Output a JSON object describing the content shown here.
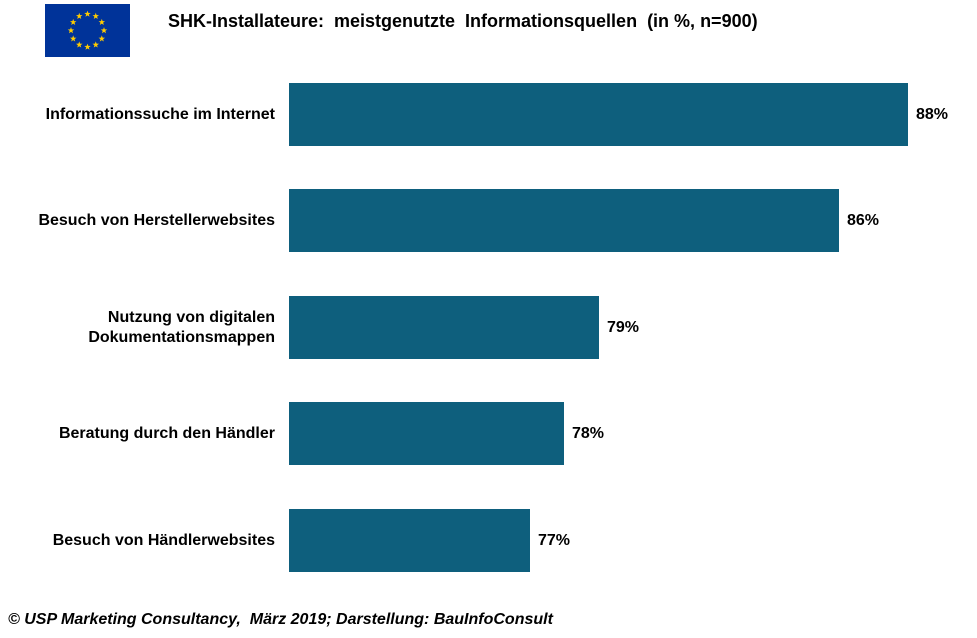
{
  "header": {
    "title": "SHK-Installateure:  meistgenutzte  Informationsquellen  (in %, n=900)",
    "logo": "eu-flag"
  },
  "chart_data": {
    "type": "bar",
    "orientation": "horizontal",
    "title": "SHK-Installateure:  meistgenutzte  Informationsquellen  (in %, n=900)",
    "categories": [
      "Informationssuche im Internet",
      "Besuch von Herstellerwebsites",
      "Nutzung von digitalen\nDokumentationsmappen",
      "Beratung durch den Händler",
      "Besuch von Händlerwebsites"
    ],
    "values": [
      88,
      86,
      79,
      78,
      77
    ],
    "value_labels": [
      "88%",
      "86%",
      "79%",
      "78%",
      "77%"
    ],
    "xlabel": "",
    "ylabel": "",
    "xlim": [
      70,
      90
    ],
    "grid": false,
    "legend": false,
    "unit": "%",
    "sample_size": "n=900"
  },
  "footer": {
    "source": "© USP Marketing Consultancy,  März 2019; Darstellung: BauInfoConsult"
  },
  "colors": {
    "bar": "#0e5f7d",
    "flag_blue": "#003399",
    "star_yellow": "#ffcc00",
    "text": "#000000",
    "background": "#ffffff"
  }
}
